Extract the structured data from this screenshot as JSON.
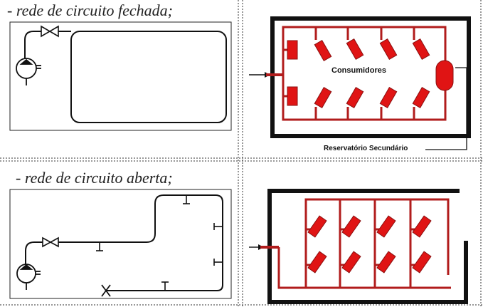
{
  "captions": {
    "closed": "- rede de circuito fechada;",
    "open": "- rede de circuito aberta;"
  },
  "labels": {
    "consumers": "Consumidores",
    "secondary_reservoir": "Reservatório Secundário"
  },
  "colors": {
    "line_black": "#111111",
    "pipe_red": "#b11c1c",
    "consumer_red": "#e01414"
  },
  "icons": [
    "valve-icon",
    "compressor-icon",
    "tap-icon",
    "cap-x-icon",
    "arrow-icon"
  ]
}
